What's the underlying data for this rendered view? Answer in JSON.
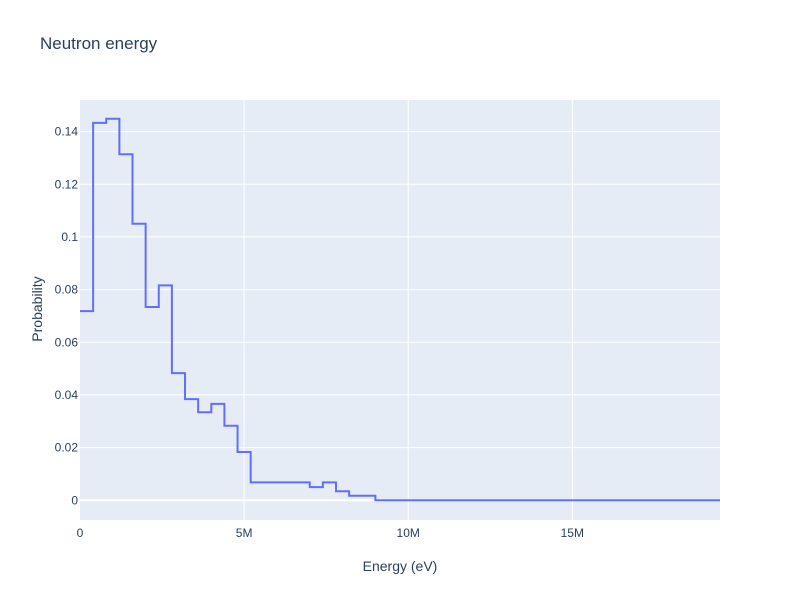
{
  "chart_data": {
    "type": "line",
    "title": "Neutron energy",
    "xlabel": "Energy (eV)",
    "ylabel": "Probability",
    "xlim": [
      0,
      19500000
    ],
    "ylim": [
      -0.0075,
      0.152
    ],
    "grid": true,
    "x_ticks": [
      {
        "value": 0,
        "label": "0"
      },
      {
        "value": 5000000,
        "label": "5M"
      },
      {
        "value": 10000000,
        "label": "10M"
      },
      {
        "value": 15000000,
        "label": "15M"
      }
    ],
    "y_ticks": [
      {
        "value": 0,
        "label": "0"
      },
      {
        "value": 0.02,
        "label": "0.02"
      },
      {
        "value": 0.04,
        "label": "0.04"
      },
      {
        "value": 0.06,
        "label": "0.06"
      },
      {
        "value": 0.08,
        "label": "0.08"
      },
      {
        "value": 0.1,
        "label": "0.1"
      },
      {
        "value": 0.12,
        "label": "0.12"
      },
      {
        "value": 0.14,
        "label": "0.14"
      }
    ],
    "series": [
      {
        "line_shape": "step",
        "color": "#636efa",
        "x": [
          0,
          400000,
          800000,
          1200000,
          1600000,
          2000000,
          2400000,
          2800000,
          3200000,
          3600000,
          4000000,
          4400000,
          4800000,
          5200000,
          7000000,
          7400000,
          7800000,
          8200000,
          9000000,
          19500000
        ],
        "y": [
          0.0718,
          0.1433,
          0.1449,
          0.1314,
          0.105,
          0.0734,
          0.0816,
          0.0483,
          0.0384,
          0.0334,
          0.0366,
          0.0283,
          0.0183,
          0.0068,
          0.005,
          0.0068,
          0.0034,
          0.0017,
          0.0,
          0.0
        ]
      }
    ]
  }
}
